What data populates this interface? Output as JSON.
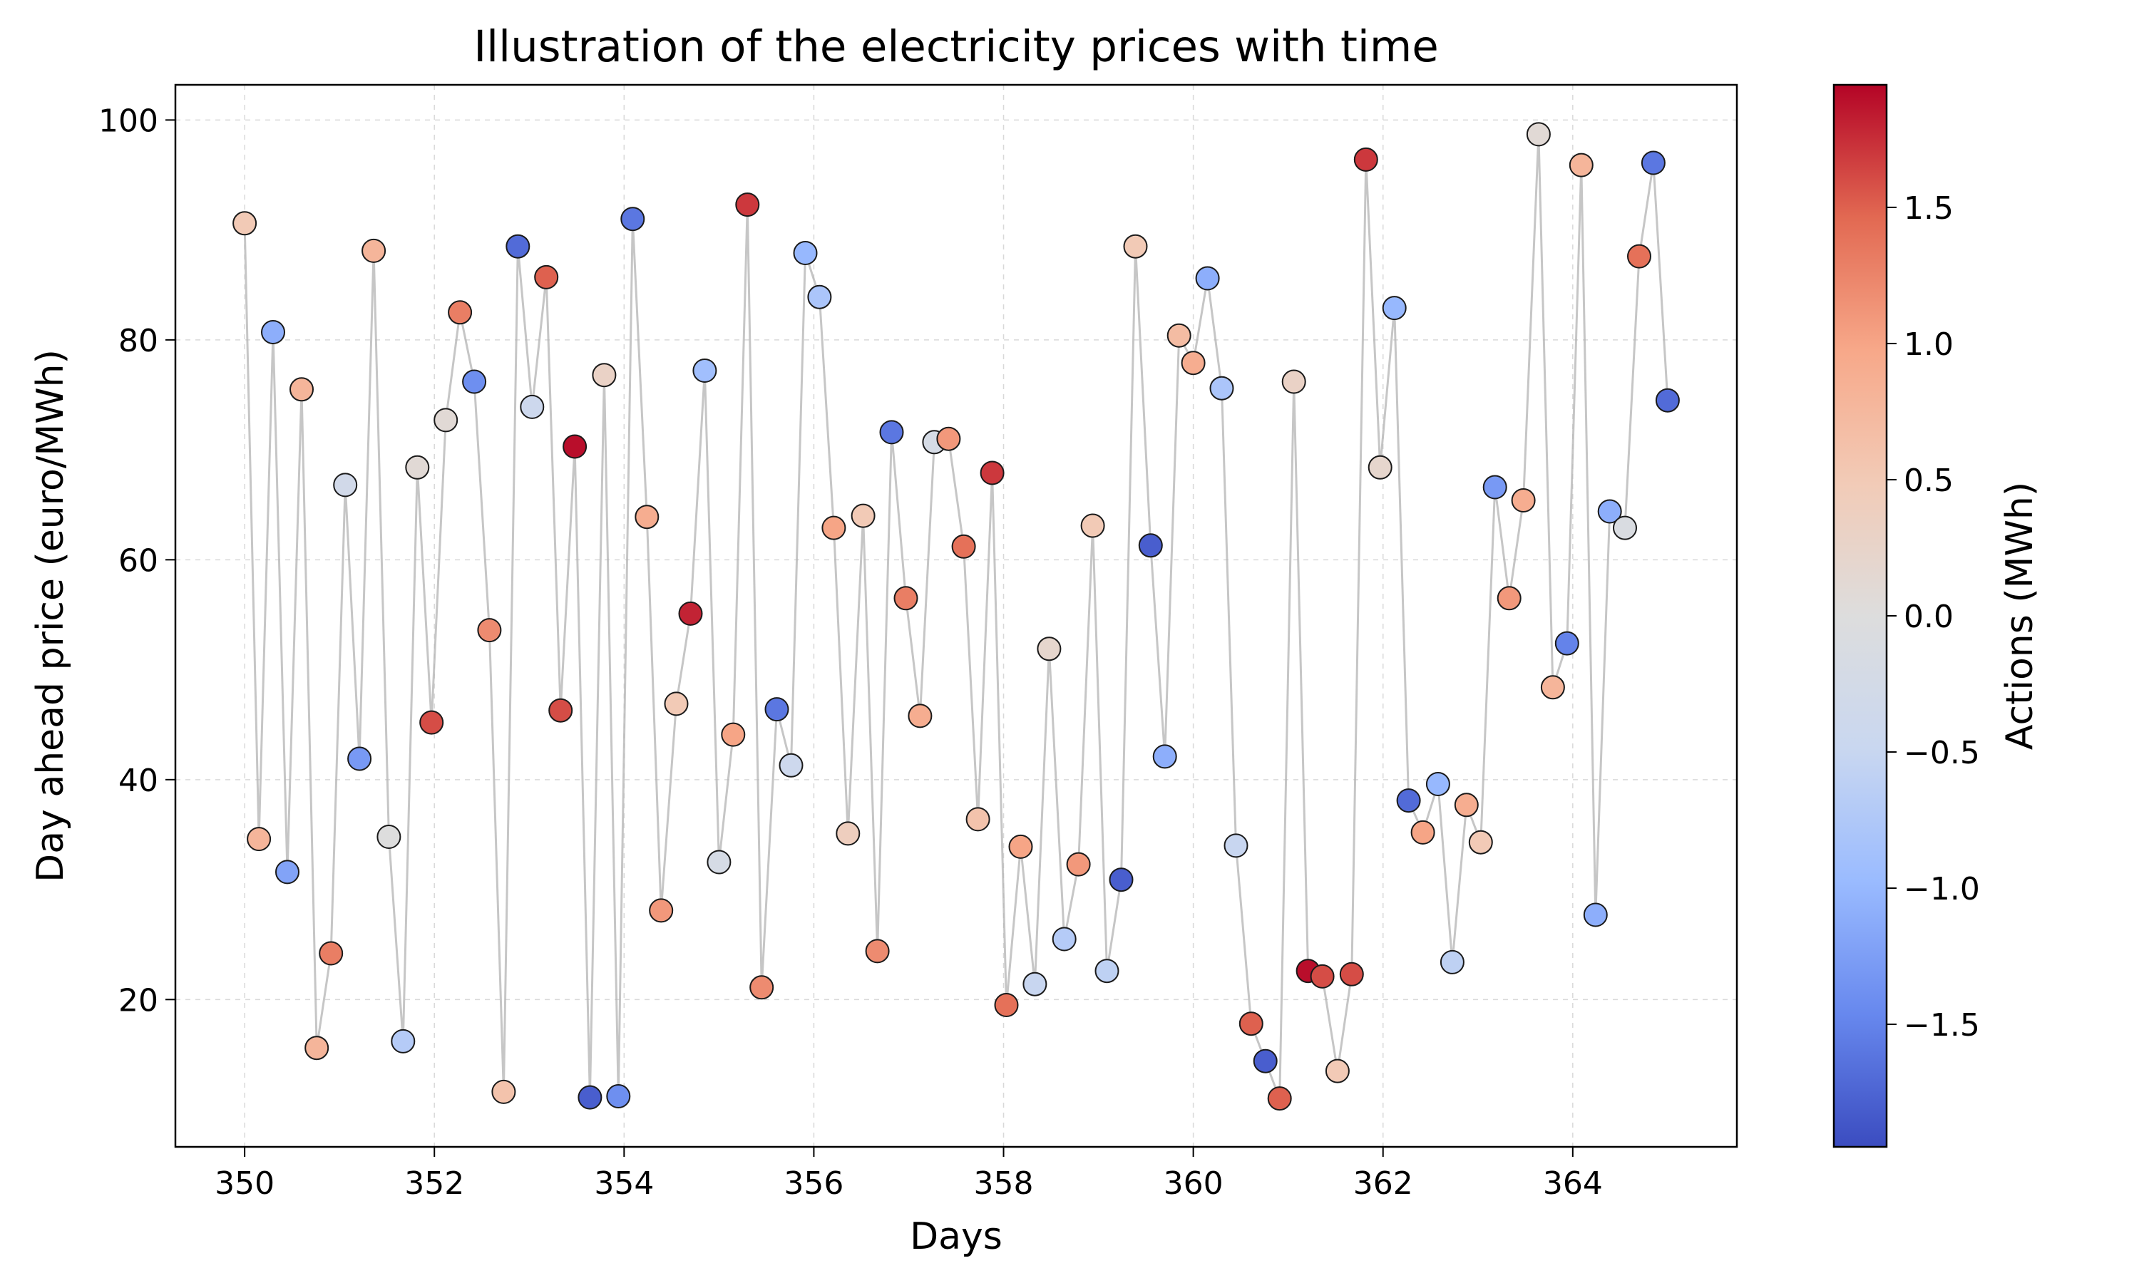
{
  "chart_data": {
    "type": "scatter",
    "title": "Illustration of the electricity prices with time",
    "xlabel": "Days",
    "ylabel": "Day ahead price (euro/MWh)",
    "colorbar_label": "Actions (MWh)",
    "xlim": [
      349.27,
      365.73
    ],
    "ylim": [
      6.6,
      103.2
    ],
    "clim": [
      -1.95,
      1.95
    ],
    "colormap": "coolwarm",
    "colormap_stops": [
      "#3b4cc0",
      "#6788ee",
      "#9abbff",
      "#c9d7f0",
      "#dddddd",
      "#f2cbb7",
      "#f7a889",
      "#e26952",
      "#b40426"
    ],
    "x_ticks": [
      350,
      352,
      354,
      356,
      358,
      360,
      362,
      364
    ],
    "y_ticks": [
      20,
      40,
      60,
      80,
      100
    ],
    "colorbar_ticks": [
      -1.5,
      -1.0,
      -0.5,
      0.0,
      0.5,
      1.0,
      1.5
    ],
    "x_tick_labels": [
      "350",
      "352",
      "354",
      "356",
      "358",
      "360",
      "362",
      "364"
    ],
    "y_tick_labels": [
      "20",
      "40",
      "60",
      "80",
      "100"
    ],
    "colorbar_tick_labels": [
      "−1.5",
      "−1.0",
      "−0.5",
      "0.0",
      "0.5",
      "1.0",
      "1.5"
    ],
    "grid": true,
    "connecting_line": true,
    "series": [
      {
        "points": [
          {
            "x": 350.0,
            "y": 90.6,
            "c": 0.5
          },
          {
            "x": 350.15,
            "y": 34.6,
            "c": 0.8
          },
          {
            "x": 350.3,
            "y": 80.7,
            "c": -1.1
          },
          {
            "x": 350.45,
            "y": 31.6,
            "c": -1.2
          },
          {
            "x": 350.6,
            "y": 75.5,
            "c": 0.8
          },
          {
            "x": 350.76,
            "y": 15.6,
            "c": 0.8
          },
          {
            "x": 350.91,
            "y": 24.2,
            "c": 1.3
          },
          {
            "x": 351.06,
            "y": 66.8,
            "c": -0.3
          },
          {
            "x": 351.21,
            "y": 41.9,
            "c": -1.3
          },
          {
            "x": 351.36,
            "y": 88.1,
            "c": 0.8
          },
          {
            "x": 351.52,
            "y": 34.8,
            "c": 0.0
          },
          {
            "x": 351.67,
            "y": 16.2,
            "c": -0.7
          },
          {
            "x": 351.82,
            "y": 68.4,
            "c": 0.1
          },
          {
            "x": 351.97,
            "y": 45.2,
            "c": 1.6
          },
          {
            "x": 352.12,
            "y": 72.7,
            "c": 0.1
          },
          {
            "x": 352.27,
            "y": 82.5,
            "c": 1.3
          },
          {
            "x": 352.42,
            "y": 76.2,
            "c": -1.4
          },
          {
            "x": 352.58,
            "y": 53.6,
            "c": 1.2
          },
          {
            "x": 352.73,
            "y": 11.6,
            "c": 0.6
          },
          {
            "x": 352.88,
            "y": 88.5,
            "c": -1.7
          },
          {
            "x": 353.03,
            "y": 73.9,
            "c": -0.4
          },
          {
            "x": 353.18,
            "y": 85.7,
            "c": 1.5
          },
          {
            "x": 353.33,
            "y": 46.3,
            "c": 1.6
          },
          {
            "x": 353.48,
            "y": 70.3,
            "c": 1.9
          },
          {
            "x": 353.64,
            "y": 11.1,
            "c": -1.8
          },
          {
            "x": 353.79,
            "y": 76.8,
            "c": 0.3
          },
          {
            "x": 353.94,
            "y": 11.2,
            "c": -1.4
          },
          {
            "x": 354.09,
            "y": 91.0,
            "c": -1.6
          },
          {
            "x": 354.24,
            "y": 63.9,
            "c": 0.9
          },
          {
            "x": 354.39,
            "y": 28.1,
            "c": 1.1
          },
          {
            "x": 354.55,
            "y": 46.9,
            "c": 0.5
          },
          {
            "x": 354.7,
            "y": 55.1,
            "c": 1.8
          },
          {
            "x": 354.85,
            "y": 77.2,
            "c": -0.9
          },
          {
            "x": 355.0,
            "y": 32.5,
            "c": -0.2
          },
          {
            "x": 355.15,
            "y": 44.1,
            "c": 1.0
          },
          {
            "x": 355.3,
            "y": 92.3,
            "c": 1.7
          },
          {
            "x": 355.45,
            "y": 21.1,
            "c": 1.2
          },
          {
            "x": 355.61,
            "y": 46.4,
            "c": -1.6
          },
          {
            "x": 355.76,
            "y": 41.3,
            "c": -0.4
          },
          {
            "x": 355.91,
            "y": 87.9,
            "c": -1.0
          },
          {
            "x": 356.06,
            "y": 83.9,
            "c": -0.8
          },
          {
            "x": 356.21,
            "y": 62.9,
            "c": 1.0
          },
          {
            "x": 356.36,
            "y": 35.1,
            "c": 0.4
          },
          {
            "x": 356.52,
            "y": 64.0,
            "c": 0.5
          },
          {
            "x": 356.67,
            "y": 24.4,
            "c": 1.2
          },
          {
            "x": 356.82,
            "y": 71.6,
            "c": -1.6
          },
          {
            "x": 356.97,
            "y": 56.5,
            "c": 1.3
          },
          {
            "x": 357.12,
            "y": 45.8,
            "c": 0.9
          },
          {
            "x": 357.27,
            "y": 70.7,
            "c": -0.2
          },
          {
            "x": 357.42,
            "y": 71.0,
            "c": 1.1
          },
          {
            "x": 357.58,
            "y": 61.2,
            "c": 1.4
          },
          {
            "x": 357.73,
            "y": 36.4,
            "c": 0.6
          },
          {
            "x": 357.88,
            "y": 67.9,
            "c": 1.7
          },
          {
            "x": 358.03,
            "y": 19.5,
            "c": 1.4
          },
          {
            "x": 358.18,
            "y": 33.9,
            "c": 1.0
          },
          {
            "x": 358.33,
            "y": 21.4,
            "c": -0.5
          },
          {
            "x": 358.48,
            "y": 51.9,
            "c": 0.2
          },
          {
            "x": 358.64,
            "y": 25.5,
            "c": -0.7
          },
          {
            "x": 358.79,
            "y": 32.3,
            "c": 1.1
          },
          {
            "x": 358.94,
            "y": 63.1,
            "c": 0.5
          },
          {
            "x": 359.09,
            "y": 22.6,
            "c": -0.6
          },
          {
            "x": 359.24,
            "y": 30.9,
            "c": -1.8
          },
          {
            "x": 359.39,
            "y": 88.5,
            "c": 0.5
          },
          {
            "x": 359.55,
            "y": 61.3,
            "c": -1.8
          },
          {
            "x": 359.7,
            "y": 42.1,
            "c": -1.1
          },
          {
            "x": 359.85,
            "y": 80.4,
            "c": 0.7
          },
          {
            "x": 360.0,
            "y": 77.9,
            "c": 0.9
          },
          {
            "x": 360.15,
            "y": 85.6,
            "c": -1.1
          },
          {
            "x": 360.3,
            "y": 75.6,
            "c": -0.8
          },
          {
            "x": 360.45,
            "y": 34.0,
            "c": -0.5
          },
          {
            "x": 360.61,
            "y": 17.8,
            "c": 1.5
          },
          {
            "x": 360.76,
            "y": 14.4,
            "c": -1.8
          },
          {
            "x": 360.91,
            "y": 11.0,
            "c": 1.5
          },
          {
            "x": 361.06,
            "y": 76.2,
            "c": 0.3
          },
          {
            "x": 361.21,
            "y": 22.6,
            "c": 1.9
          },
          {
            "x": 361.36,
            "y": 22.1,
            "c": 1.6
          },
          {
            "x": 361.52,
            "y": 13.5,
            "c": 0.5
          },
          {
            "x": 361.67,
            "y": 22.3,
            "c": 1.6
          },
          {
            "x": 361.82,
            "y": 96.4,
            "c": 1.7
          },
          {
            "x": 361.97,
            "y": 68.4,
            "c": 0.2
          },
          {
            "x": 362.12,
            "y": 82.9,
            "c": -1.0
          },
          {
            "x": 362.27,
            "y": 38.1,
            "c": -1.7
          },
          {
            "x": 362.42,
            "y": 35.2,
            "c": 1.0
          },
          {
            "x": 362.58,
            "y": 39.6,
            "c": -1.0
          },
          {
            "x": 362.73,
            "y": 23.4,
            "c": -0.6
          },
          {
            "x": 362.88,
            "y": 37.7,
            "c": 0.9
          },
          {
            "x": 363.03,
            "y": 34.3,
            "c": 0.5
          },
          {
            "x": 363.18,
            "y": 66.6,
            "c": -1.3
          },
          {
            "x": 363.33,
            "y": 56.5,
            "c": 1.1
          },
          {
            "x": 363.48,
            "y": 65.4,
            "c": 0.9
          },
          {
            "x": 363.64,
            "y": 98.7,
            "c": 0.1
          },
          {
            "x": 363.79,
            "y": 48.4,
            "c": 0.8
          },
          {
            "x": 363.94,
            "y": 52.4,
            "c": -1.5
          },
          {
            "x": 364.09,
            "y": 95.9,
            "c": 0.8
          },
          {
            "x": 364.24,
            "y": 27.7,
            "c": -1.1
          },
          {
            "x": 364.39,
            "y": 64.4,
            "c": -1.1
          },
          {
            "x": 364.55,
            "y": 62.9,
            "c": -0.1
          },
          {
            "x": 364.7,
            "y": 87.6,
            "c": 1.4
          },
          {
            "x": 364.85,
            "y": 96.1,
            "c": -1.6
          },
          {
            "x": 365.0,
            "y": 74.5,
            "c": -1.7
          }
        ]
      }
    ]
  }
}
